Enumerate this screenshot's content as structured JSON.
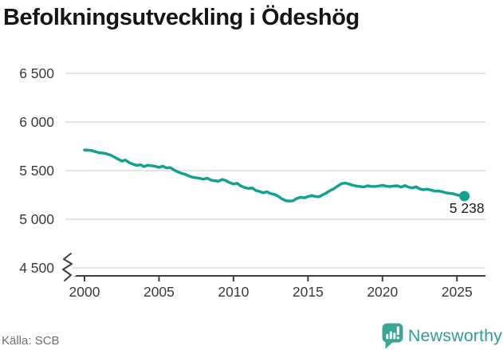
{
  "title": "Befolkningsutveckling i Ödeshög",
  "chart_data": {
    "type": "line",
    "title": "Befolkningsutveckling i Ödeshög",
    "xlabel": "",
    "ylabel": "",
    "x_start": 2000,
    "x_step_years": 0.25,
    "x_end": 2025.5,
    "values": [
      5712,
      5710,
      5706,
      5694,
      5684,
      5680,
      5672,
      5660,
      5640,
      5618,
      5598,
      5608,
      5582,
      5566,
      5554,
      5560,
      5542,
      5556,
      5550,
      5544,
      5534,
      5546,
      5528,
      5532,
      5508,
      5488,
      5472,
      5462,
      5446,
      5432,
      5426,
      5420,
      5412,
      5422,
      5402,
      5396,
      5392,
      5410,
      5396,
      5376,
      5362,
      5370,
      5342,
      5326,
      5316,
      5322,
      5296,
      5286,
      5272,
      5282,
      5264,
      5256,
      5236,
      5210,
      5192,
      5186,
      5190,
      5214,
      5226,
      5220,
      5234,
      5244,
      5234,
      5232,
      5252,
      5272,
      5296,
      5316,
      5342,
      5366,
      5372,
      5362,
      5350,
      5342,
      5336,
      5332,
      5344,
      5338,
      5336,
      5342,
      5348,
      5340,
      5336,
      5342,
      5344,
      5330,
      5346,
      5330,
      5322,
      5334,
      5312,
      5304,
      5310,
      5300,
      5290,
      5290,
      5284,
      5272,
      5266,
      5262,
      5250,
      5242,
      5238
    ],
    "last_point": {
      "x": 2025.5,
      "value": 5238,
      "label": "5 238"
    },
    "x_ticks": [
      2000,
      2005,
      2010,
      2015,
      2020,
      2025
    ],
    "y_ticks": [
      {
        "value": 6500,
        "label": "6 500"
      },
      {
        "value": 6000,
        "label": "6 000"
      },
      {
        "value": 5500,
        "label": "5 500"
      },
      {
        "value": 5000,
        "label": "5 000"
      },
      {
        "value": 4500,
        "label": "4 500"
      }
    ],
    "y_axis_break": true,
    "ylim": [
      4500,
      6750
    ],
    "grid": true,
    "legend_position": "none",
    "line_color": "#12A192",
    "grid_color": "#DBDBDB",
    "axis_color": "#3E3E3E",
    "label_color": "#3A3A3A",
    "end_label_color": "#1C1C1C"
  },
  "footer": {
    "source": "Källa: SCB",
    "brand": "Newsworthy",
    "brand_color": "#2F9F93",
    "badge_color": "#3BA597",
    "badge_icon": "bar-chart-speech-bubble-icon"
  }
}
